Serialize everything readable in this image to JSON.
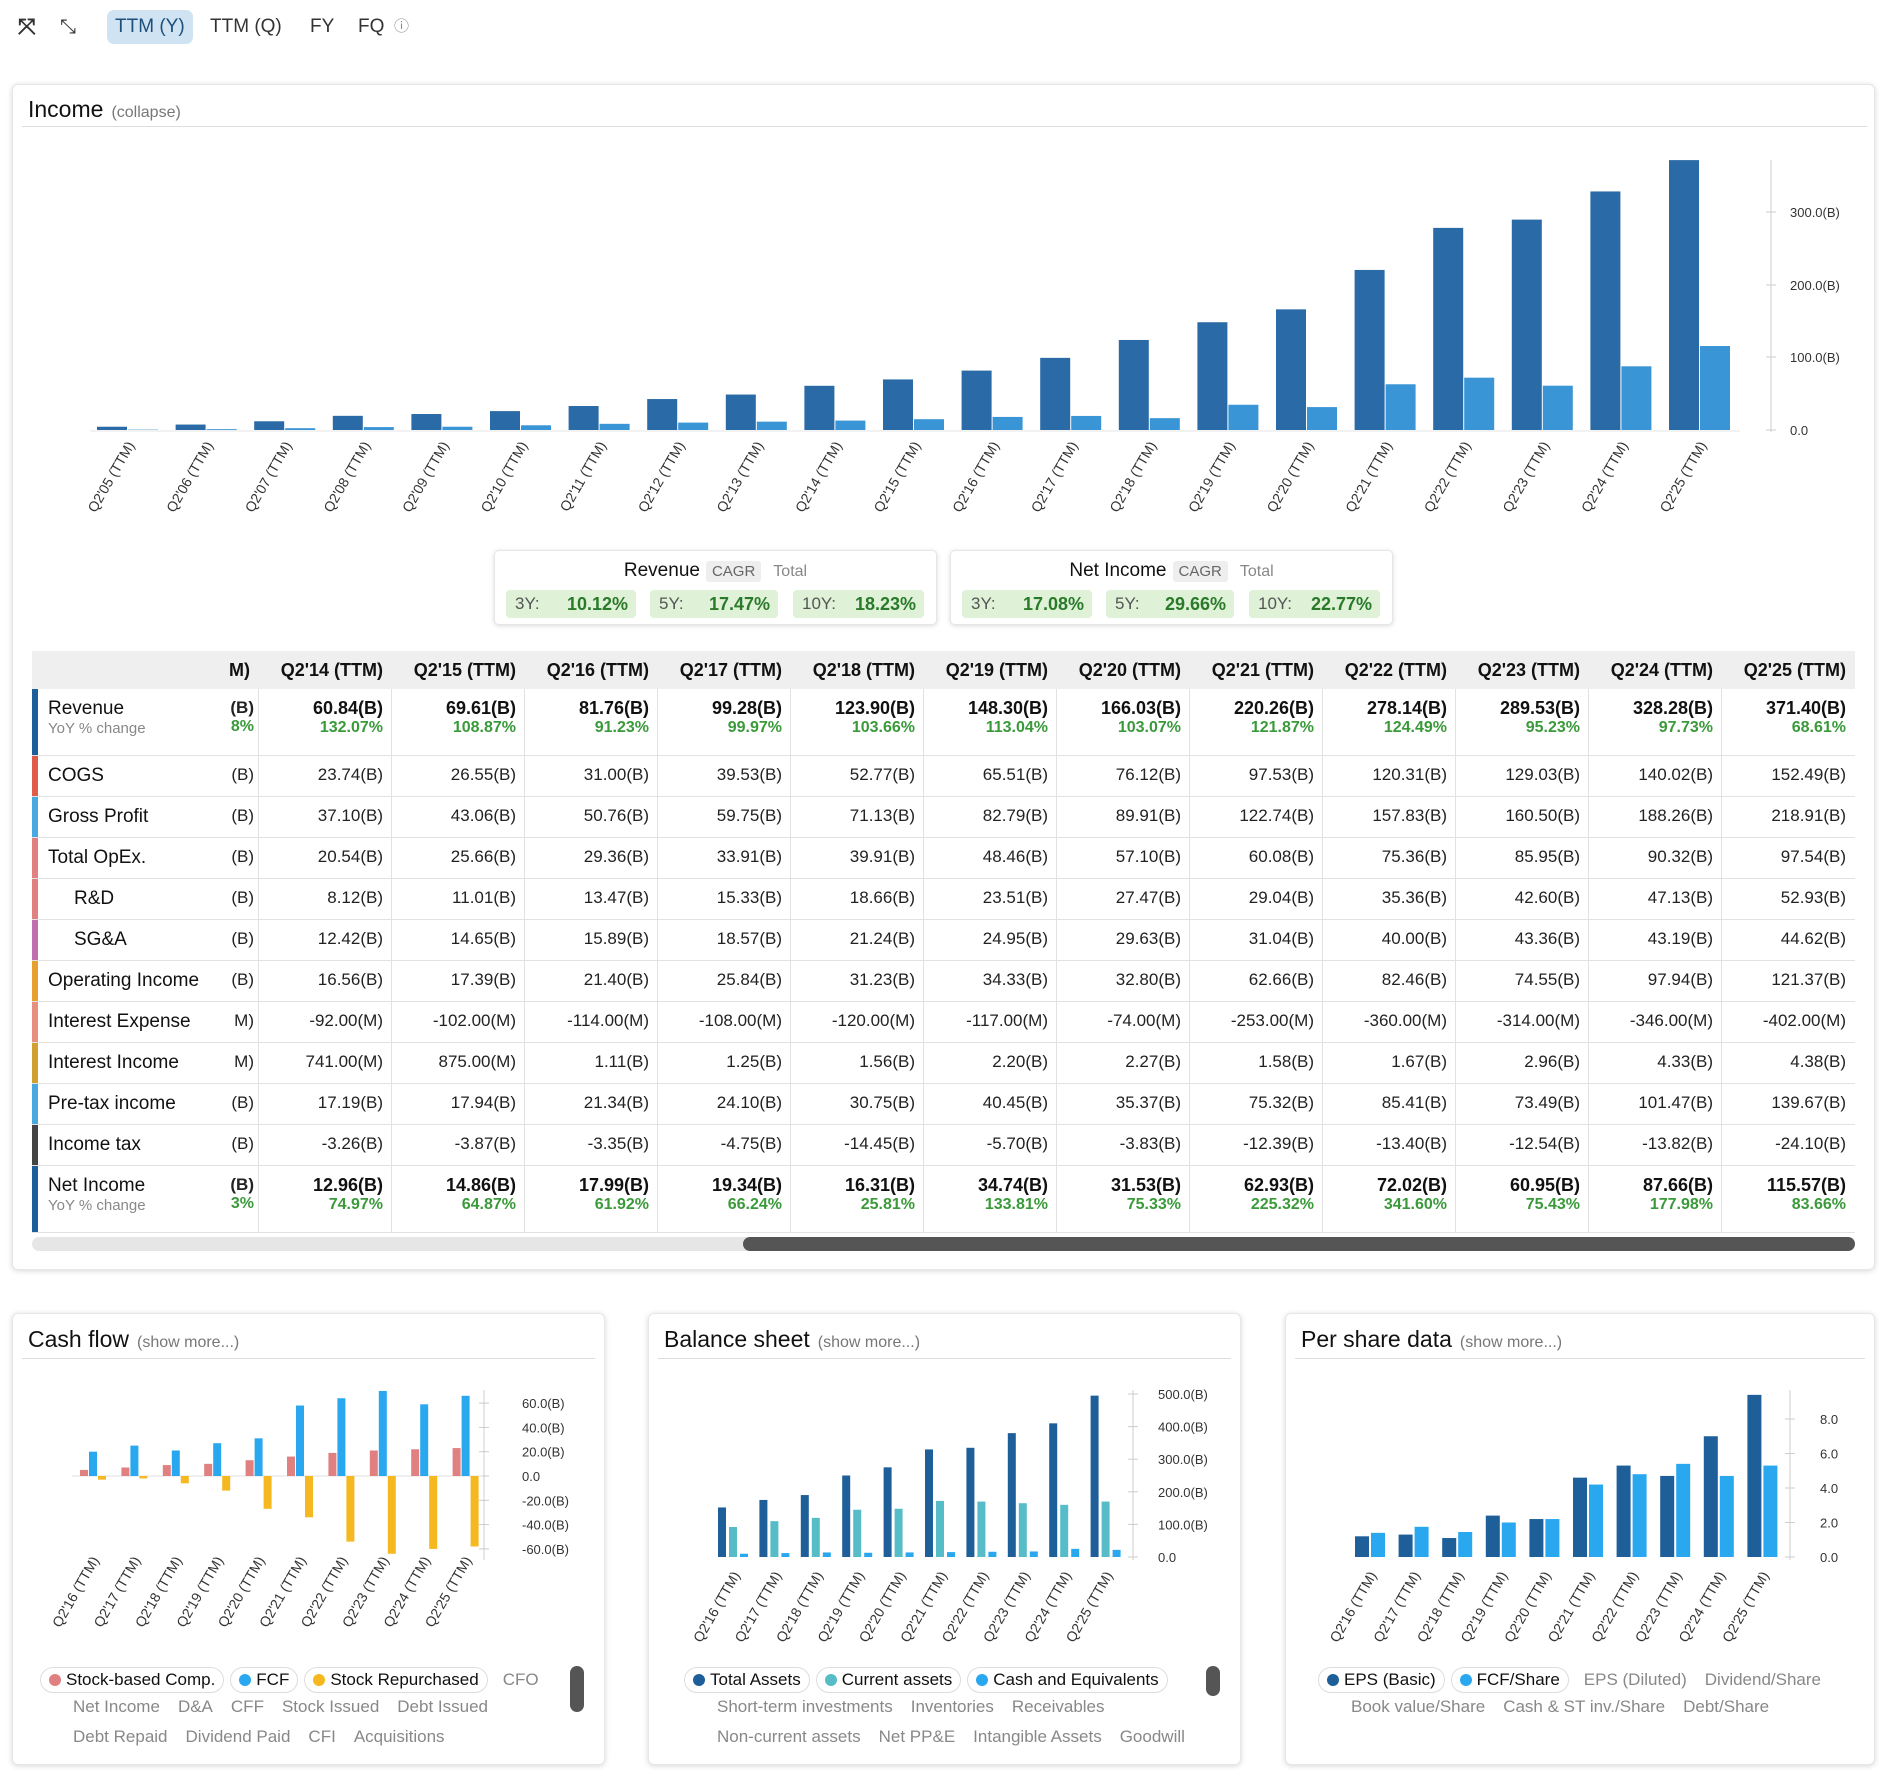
{
  "toolbar": {
    "expand_icon": "expand-arrows-icon",
    "collapse_icon": "compress-arrows-icon",
    "tabs": [
      "TTM (Y)",
      "TTM (Q)",
      "FY",
      "FQ"
    ],
    "active": "TTM (Y)",
    "help_icon": "question-circle-icon"
  },
  "income": {
    "title": "Income",
    "toggle": "(collapse)",
    "chart_data": {
      "type": "bar",
      "categories": [
        "Q2'05 (TTM)",
        "Q2'06 (TTM)",
        "Q2'07 (TTM)",
        "Q2'08 (TTM)",
        "Q2'09 (TTM)",
        "Q2'10 (TTM)",
        "Q2'11 (TTM)",
        "Q2'12 (TTM)",
        "Q2'13 (TTM)",
        "Q2'14 (TTM)",
        "Q2'15 (TTM)",
        "Q2'16 (TTM)",
        "Q2'17 (TTM)",
        "Q2'18 (TTM)",
        "Q2'19 (TTM)",
        "Q2'20 (TTM)",
        "Q2'21 (TTM)",
        "Q2'22 (TTM)",
        "Q2'23 (TTM)",
        "Q2'24 (TTM)",
        "Q2'25 (TTM)"
      ],
      "series": [
        {
          "name": "Revenue",
          "values": [
            4.5,
            7.5,
            12,
            19.5,
            22,
            26,
            33,
            42.6,
            48.8,
            60.84,
            69.61,
            81.76,
            99.28,
            123.9,
            148.3,
            166.03,
            220.26,
            278.14,
            289.53,
            328.28,
            371.4
          ],
          "color": "#2a6aa6"
        },
        {
          "name": "Net Income",
          "values": [
            0.5,
            1.2,
            2.5,
            4,
            4.5,
            6.5,
            8.5,
            10.2,
            11.5,
            12.96,
            14.86,
            17.99,
            19.34,
            16.31,
            34.74,
            31.53,
            62.93,
            72.02,
            60.95,
            87.66,
            115.57
          ],
          "color": "#3a95d6"
        }
      ],
      "yticks": [
        "0.0",
        "100.0(B)",
        "200.0(B)",
        "300.0(B)"
      ],
      "ylim": [
        0,
        380
      ]
    }
  },
  "cagr": [
    {
      "name": "Revenue",
      "pill": "CAGR",
      "total": "Total",
      "periods": [
        {
          "label": "3Y:",
          "value": "10.12%"
        },
        {
          "label": "5Y:",
          "value": "17.47%"
        },
        {
          "label": "10Y:",
          "value": "18.23%"
        }
      ]
    },
    {
      "name": "Net Income",
      "pill": "CAGR",
      "total": "Total",
      "periods": [
        {
          "label": "3Y:",
          "value": "17.08%"
        },
        {
          "label": "5Y:",
          "value": "29.66%"
        },
        {
          "label": "10Y:",
          "value": "22.77%"
        }
      ]
    }
  ],
  "table": {
    "cut_header": "M)",
    "columns": [
      "Q2'14 (TTM)",
      "Q2'15 (TTM)",
      "Q2'16 (TTM)",
      "Q2'17 (TTM)",
      "Q2'18 (TTM)",
      "Q2'19 (TTM)",
      "Q2'20 (TTM)",
      "Q2'21 (TTM)",
      "Q2'22 (TTM)",
      "Q2'23 (TTM)",
      "Q2'24 (TTM)",
      "Q2'25 (TTM)"
    ],
    "rows": [
      {
        "label": "Revenue",
        "sub": "YoY % change",
        "bold": true,
        "color": "#1f5f99",
        "cut": "(B)",
        "cut2": "8%",
        "values": [
          "60.84(B)",
          "69.61(B)",
          "81.76(B)",
          "99.28(B)",
          "123.90(B)",
          "148.30(B)",
          "166.03(B)",
          "220.26(B)",
          "278.14(B)",
          "289.53(B)",
          "328.28(B)",
          "371.40(B)"
        ],
        "yoy": [
          "132.07%",
          "108.87%",
          "91.23%",
          "99.97%",
          "103.66%",
          "113.04%",
          "103.07%",
          "121.87%",
          "124.49%",
          "95.23%",
          "97.73%",
          "68.61%"
        ]
      },
      {
        "label": "COGS",
        "color": "#e05b4a",
        "cut": "(B)",
        "values": [
          "23.74(B)",
          "26.55(B)",
          "31.00(B)",
          "39.53(B)",
          "52.77(B)",
          "65.51(B)",
          "76.12(B)",
          "97.53(B)",
          "120.31(B)",
          "129.03(B)",
          "140.02(B)",
          "152.49(B)"
        ]
      },
      {
        "label": "Gross Profit",
        "color": "#4aa8e0",
        "cut": "(B)",
        "values": [
          "37.10(B)",
          "43.06(B)",
          "50.76(B)",
          "59.75(B)",
          "71.13(B)",
          "82.79(B)",
          "89.91(B)",
          "122.74(B)",
          "157.83(B)",
          "160.50(B)",
          "188.26(B)",
          "218.91(B)"
        ]
      },
      {
        "label": "Total OpEx.",
        "color": "#e08080",
        "cut": "(B)",
        "values": [
          "20.54(B)",
          "25.66(B)",
          "29.36(B)",
          "33.91(B)",
          "39.91(B)",
          "48.46(B)",
          "57.10(B)",
          "60.08(B)",
          "75.36(B)",
          "85.95(B)",
          "90.32(B)",
          "97.54(B)"
        ]
      },
      {
        "label": "R&D",
        "indent": true,
        "color": "#e08080",
        "cut": "(B)",
        "values": [
          "8.12(B)",
          "11.01(B)",
          "13.47(B)",
          "15.33(B)",
          "18.66(B)",
          "23.51(B)",
          "27.47(B)",
          "29.04(B)",
          "35.36(B)",
          "42.60(B)",
          "47.13(B)",
          "52.93(B)"
        ]
      },
      {
        "label": "SG&A",
        "indent": true,
        "color": "#c070b0",
        "cut": "(B)",
        "values": [
          "12.42(B)",
          "14.65(B)",
          "15.89(B)",
          "18.57(B)",
          "21.24(B)",
          "24.95(B)",
          "29.63(B)",
          "31.04(B)",
          "40.00(B)",
          "43.36(B)",
          "43.19(B)",
          "44.62(B)"
        ]
      },
      {
        "label": "Operating Income",
        "color": "#e8a030",
        "cut": "(B)",
        "values": [
          "16.56(B)",
          "17.39(B)",
          "21.40(B)",
          "25.84(B)",
          "31.23(B)",
          "34.33(B)",
          "32.80(B)",
          "62.66(B)",
          "82.46(B)",
          "74.55(B)",
          "97.94(B)",
          "121.37(B)"
        ]
      },
      {
        "label": "Interest Expense",
        "color": "#e89080",
        "cut": "M)",
        "values": [
          "-92.00(M)",
          "-102.00(M)",
          "-114.00(M)",
          "-108.00(M)",
          "-120.00(M)",
          "-117.00(M)",
          "-74.00(M)",
          "-253.00(M)",
          "-360.00(M)",
          "-314.00(M)",
          "-346.00(M)",
          "-402.00(M)"
        ]
      },
      {
        "label": "Interest Income",
        "color": "#d0a030",
        "cut": "M)",
        "values": [
          "741.00(M)",
          "875.00(M)",
          "1.11(B)",
          "1.25(B)",
          "1.56(B)",
          "2.20(B)",
          "2.27(B)",
          "1.58(B)",
          "1.67(B)",
          "2.96(B)",
          "4.33(B)",
          "4.38(B)"
        ]
      },
      {
        "label": "Pre-tax income",
        "color": "#4aa8e0",
        "cut": "(B)",
        "values": [
          "17.19(B)",
          "17.94(B)",
          "21.34(B)",
          "24.10(B)",
          "30.75(B)",
          "40.45(B)",
          "35.37(B)",
          "75.32(B)",
          "85.41(B)",
          "73.49(B)",
          "101.47(B)",
          "139.67(B)"
        ]
      },
      {
        "label": "Income tax",
        "color": "#444444",
        "cut": "(B)",
        "values": [
          "-3.26(B)",
          "-3.87(B)",
          "-3.35(B)",
          "-4.75(B)",
          "-14.45(B)",
          "-5.70(B)",
          "-3.83(B)",
          "-12.39(B)",
          "-13.40(B)",
          "-12.54(B)",
          "-13.82(B)",
          "-24.10(B)"
        ]
      },
      {
        "label": "Net Income",
        "sub": "YoY % change",
        "bold": true,
        "color": "#1f5f99",
        "cut": "(B)",
        "cut2": "3%",
        "values": [
          "12.96(B)",
          "14.86(B)",
          "17.99(B)",
          "19.34(B)",
          "16.31(B)",
          "34.74(B)",
          "31.53(B)",
          "62.93(B)",
          "72.02(B)",
          "60.95(B)",
          "87.66(B)",
          "115.57(B)"
        ],
        "yoy": [
          "74.97%",
          "64.87%",
          "61.92%",
          "66.24%",
          "25.81%",
          "133.81%",
          "75.33%",
          "225.32%",
          "341.60%",
          "75.43%",
          "177.98%",
          "83.66%"
        ]
      }
    ]
  },
  "cashflow": {
    "title": "Cash flow",
    "toggle": "(show more...)",
    "chart_data": {
      "type": "bar",
      "categories": [
        "Q2'16 (TTM)",
        "Q2'17 (TTM)",
        "Q2'18 (TTM)",
        "Q2'19 (TTM)",
        "Q2'20 (TTM)",
        "Q2'21 (TTM)",
        "Q2'22 (TTM)",
        "Q2'23 (TTM)",
        "Q2'24 (TTM)",
        "Q2'25 (TTM)"
      ],
      "series": [
        {
          "name": "Stock-based Comp.",
          "values": [
            5,
            7,
            9,
            10,
            13,
            16,
            19,
            21,
            22,
            23
          ],
          "color": "#e08080"
        },
        {
          "name": "FCF",
          "values": [
            20,
            25,
            21,
            27,
            31,
            58,
            64,
            70,
            59,
            66
          ],
          "color": "#29a8f0"
        },
        {
          "name": "Stock Repurchased",
          "values": [
            -3,
            -2,
            -6,
            -12,
            -27,
            -34,
            -54,
            -64,
            -60,
            -58
          ],
          "color": "#f5b820"
        }
      ],
      "yticks": [
        "60.0(B)",
        "40.0(B)",
        "20.0(B)",
        "0.0",
        "-20.0(B)",
        "-40.0(B)",
        "-60.0(B)"
      ],
      "ylim": [
        -65,
        70
      ]
    },
    "legend_chips": [
      {
        "label": "Stock-based Comp.",
        "color": "#e08080"
      },
      {
        "label": "FCF",
        "color": "#29a8f0"
      },
      {
        "label": "Stock Repurchased",
        "color": "#f5b820"
      }
    ],
    "legend_plain": [
      "CFO"
    ],
    "legend_row2": [
      "Net Income",
      "D&A",
      "CFF",
      "Stock Issued",
      "Debt Issued"
    ],
    "legend_row3": [
      "Debt Repaid",
      "Dividend Paid",
      "CFI",
      "Acquisitions"
    ]
  },
  "balance": {
    "title": "Balance sheet",
    "toggle": "(show more...)",
    "chart_data": {
      "type": "bar",
      "categories": [
        "Q2'16 (TTM)",
        "Q2'17 (TTM)",
        "Q2'18 (TTM)",
        "Q2'19 (TTM)",
        "Q2'20 (TTM)",
        "Q2'21 (TTM)",
        "Q2'22 (TTM)",
        "Q2'23 (TTM)",
        "Q2'24 (TTM)",
        "Q2'25 (TTM)"
      ],
      "series": [
        {
          "name": "Total Assets",
          "values": [
            152,
            175,
            190,
            250,
            275,
            330,
            335,
            380,
            410,
            495
          ],
          "color": "#1f5f99"
        },
        {
          "name": "Current assets",
          "values": [
            92,
            110,
            120,
            145,
            148,
            172,
            170,
            165,
            160,
            170
          ],
          "color": "#56bcc8"
        },
        {
          "name": "Cash and Equivalents",
          "values": [
            10,
            12,
            14,
            13,
            14,
            15,
            16,
            17,
            25,
            22
          ],
          "color": "#29a8f0"
        }
      ],
      "yticks": [
        "500.0(B)",
        "400.0(B)",
        "300.0(B)",
        "200.0(B)",
        "100.0(B)",
        "0.0"
      ],
      "ylim": [
        0,
        500
      ]
    },
    "legend_chips": [
      {
        "label": "Total Assets",
        "color": "#1f5f99"
      },
      {
        "label": "Current assets",
        "color": "#56bcc8"
      },
      {
        "label": "Cash and Equivalents",
        "color": "#29a8f0"
      }
    ],
    "legend_row2": [
      "Short-term investments",
      "Inventories",
      "Receivables"
    ],
    "legend_row3": [
      "Non-current assets",
      "Net PP&E",
      "Intangible Assets",
      "Goodwill"
    ]
  },
  "pershare": {
    "title": "Per share data",
    "toggle": "(show more...)",
    "chart_data": {
      "type": "bar",
      "categories": [
        "Q2'16 (TTM)",
        "Q2'17 (TTM)",
        "Q2'18 (TTM)",
        "Q2'19 (TTM)",
        "Q2'20 (TTM)",
        "Q2'21 (TTM)",
        "Q2'22 (TTM)",
        "Q2'23 (TTM)",
        "Q2'24 (TTM)",
        "Q2'25 (TTM)"
      ],
      "series": [
        {
          "name": "EPS (Basic)",
          "values": [
            1.2,
            1.3,
            1.1,
            2.4,
            2.2,
            4.6,
            5.3,
            4.7,
            7.0,
            9.4
          ],
          "color": "#1f5f99"
        },
        {
          "name": "FCF/Share",
          "values": [
            1.4,
            1.75,
            1.45,
            2.0,
            2.2,
            4.2,
            4.8,
            5.4,
            4.7,
            5.3
          ],
          "color": "#29a8f0"
        }
      ],
      "yticks": [
        "8.0",
        "6.0",
        "4.0",
        "2.0",
        "0.0"
      ],
      "ylim": [
        0,
        9.6
      ]
    },
    "legend_chips": [
      {
        "label": "EPS (Basic)",
        "color": "#1f5f99"
      },
      {
        "label": "FCF/Share",
        "color": "#29a8f0"
      }
    ],
    "legend_plain": [
      "EPS (Diluted)",
      "Dividend/Share"
    ],
    "legend_row2": [
      "Book value/Share",
      "Cash & ST inv./Share",
      "Debt/Share"
    ]
  }
}
